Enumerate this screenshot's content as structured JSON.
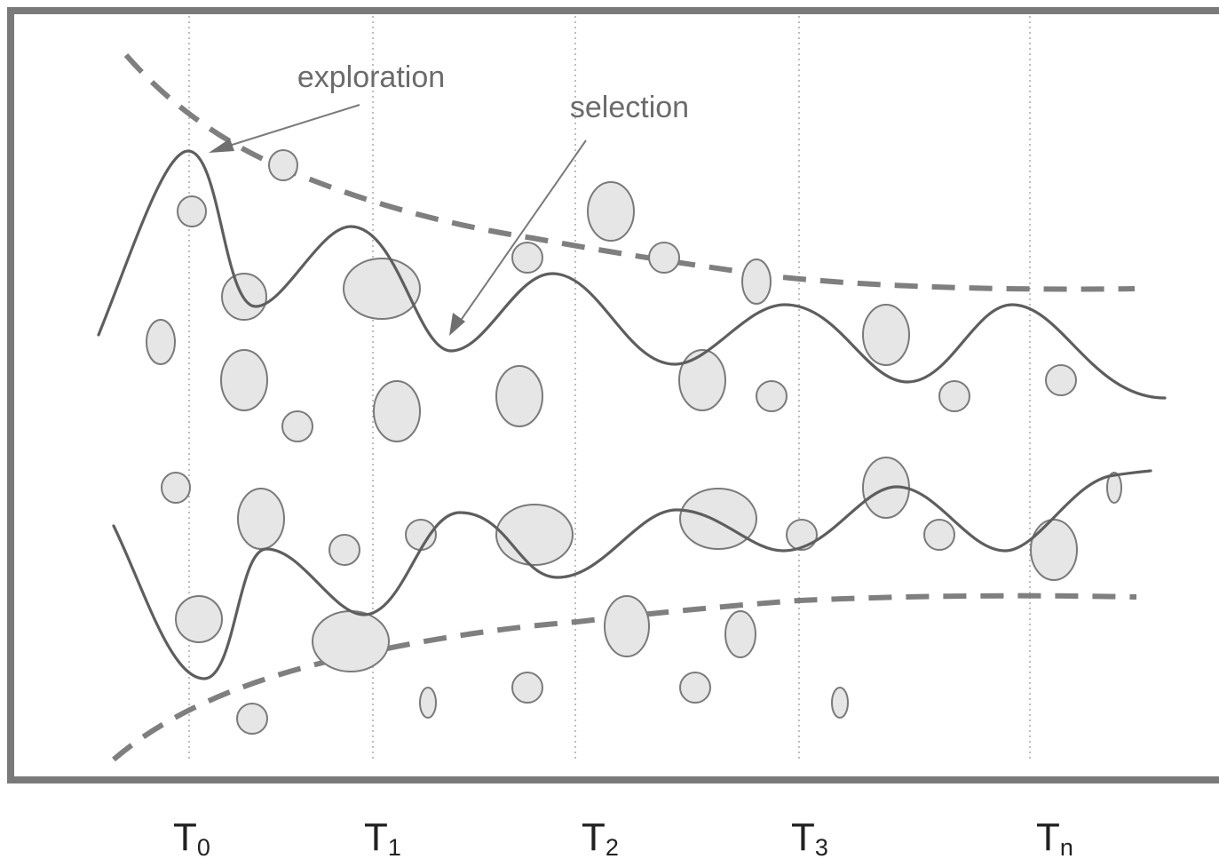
{
  "annotations": {
    "exploration": "exploration",
    "selection": "selection"
  },
  "time_axis": {
    "labels": [
      {
        "main": "T",
        "sub": "0"
      },
      {
        "main": "T",
        "sub": "1"
      },
      {
        "main": "T",
        "sub": "2"
      },
      {
        "main": "T",
        "sub": "3"
      },
      {
        "main": "T",
        "sub": "n"
      }
    ]
  },
  "colors": {
    "frame": "#7a7a7a",
    "wave": "#5e5e5e",
    "envelope": "#7f7f7f",
    "blob_fill": "#e6e6e6",
    "text": "#6b6b6b"
  }
}
